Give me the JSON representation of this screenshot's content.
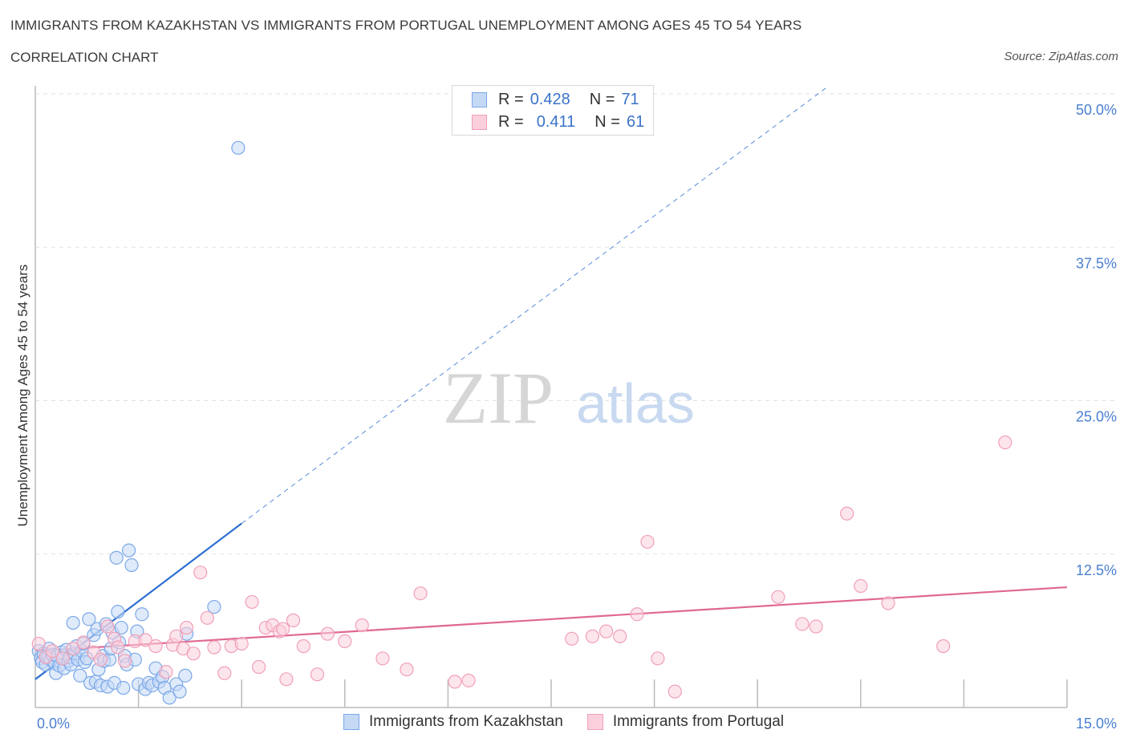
{
  "header": {
    "title": "IMMIGRANTS FROM KAZAKHSTAN VS IMMIGRANTS FROM PORTUGAL UNEMPLOYMENT AMONG AGES 45 TO 54 YEARS",
    "subtitle": "CORRELATION CHART",
    "source": "Source: ZipAtlas.com"
  },
  "legend_top": {
    "rows": [
      {
        "r_label": "R =",
        "r_value": "0.428",
        "n_label": "N =",
        "n_value": "71"
      },
      {
        "r_label": "R =",
        "r_value": "0.411",
        "n_label": "N =",
        "n_value": "61"
      }
    ]
  },
  "watermark": {
    "zip": "ZIP",
    "atlas": "atlas"
  },
  "chart_data": {
    "type": "scatter",
    "title": "IMMIGRANTS FROM KAZAKHSTAN VS IMMIGRANTS FROM PORTUGAL UNEMPLOYMENT AMONG AGES 45 TO 54 YEARS",
    "xlabel": "",
    "ylabel": "Unemployment Among Ages 45 to 54 years",
    "xlim": [
      0,
      15
    ],
    "ylim": [
      0,
      50
    ],
    "x_tick_labels": [
      "0.0%",
      "15.0%"
    ],
    "y_ticks": [
      12.5,
      25.0,
      37.5,
      50.0
    ],
    "y_tick_labels": [
      "12.5%",
      "25.0%",
      "37.5%",
      "50.0%"
    ],
    "grid": true,
    "series": [
      {
        "name": "Immigrants from Kazakhstan",
        "color": "#7aa8e8",
        "fill": "#c5d9f5",
        "line_color": "#2e6fd0",
        "trend": {
          "x0": 0.0,
          "y0": 2.3,
          "x1": 3.0,
          "y1": 15.0,
          "dash_to_x": 11.5,
          "dash_to_y": 50.5
        },
        "points": [
          [
            0.05,
            4.6
          ],
          [
            0.08,
            4.0
          ],
          [
            0.1,
            3.7
          ],
          [
            0.12,
            4.4
          ],
          [
            0.15,
            3.5
          ],
          [
            0.18,
            4.1
          ],
          [
            0.2,
            4.8
          ],
          [
            0.22,
            3.9
          ],
          [
            0.25,
            4.3
          ],
          [
            0.28,
            3.6
          ],
          [
            0.3,
            2.8
          ],
          [
            0.32,
            4.2
          ],
          [
            0.35,
            3.4
          ],
          [
            0.38,
            4.5
          ],
          [
            0.4,
            4.0
          ],
          [
            0.42,
            3.2
          ],
          [
            0.45,
            4.7
          ],
          [
            0.48,
            3.8
          ],
          [
            0.5,
            4.1
          ],
          [
            0.52,
            3.5
          ],
          [
            0.55,
            6.9
          ],
          [
            0.57,
            4.4
          ],
          [
            0.6,
            5.0
          ],
          [
            0.62,
            3.9
          ],
          [
            0.65,
            2.6
          ],
          [
            0.68,
            4.6
          ],
          [
            0.7,
            5.2
          ],
          [
            0.72,
            3.7
          ],
          [
            0.75,
            4.0
          ],
          [
            0.78,
            7.2
          ],
          [
            0.8,
            2.0
          ],
          [
            0.85,
            5.9
          ],
          [
            0.88,
            2.1
          ],
          [
            0.9,
            6.4
          ],
          [
            0.92,
            3.1
          ],
          [
            0.95,
            1.8
          ],
          [
            0.98,
            4.2
          ],
          [
            1.0,
            3.8
          ],
          [
            1.03,
            6.8
          ],
          [
            1.05,
            1.7
          ],
          [
            1.08,
            3.9
          ],
          [
            1.1,
            4.8
          ],
          [
            1.12,
            6.1
          ],
          [
            1.15,
            2.0
          ],
          [
            1.18,
            12.2
          ],
          [
            1.2,
            7.8
          ],
          [
            1.22,
            5.3
          ],
          [
            1.25,
            6.5
          ],
          [
            1.28,
            1.6
          ],
          [
            1.3,
            4.2
          ],
          [
            1.33,
            3.5
          ],
          [
            1.36,
            12.8
          ],
          [
            1.4,
            11.6
          ],
          [
            1.45,
            3.9
          ],
          [
            1.48,
            6.2
          ],
          [
            1.5,
            1.9
          ],
          [
            1.55,
            7.6
          ],
          [
            1.6,
            1.5
          ],
          [
            1.65,
            2.0
          ],
          [
            1.7,
            1.8
          ],
          [
            1.75,
            3.2
          ],
          [
            1.8,
            2.1
          ],
          [
            1.85,
            2.5
          ],
          [
            1.88,
            1.6
          ],
          [
            1.95,
            0.8
          ],
          [
            2.05,
            1.9
          ],
          [
            2.1,
            1.3
          ],
          [
            2.18,
            2.6
          ],
          [
            2.2,
            6.0
          ],
          [
            2.6,
            8.2
          ],
          [
            2.95,
            45.6
          ]
        ]
      },
      {
        "name": "Immigrants from Portugal",
        "color": "#f0a0b8",
        "fill": "#fbd0dc",
        "line_color": "#e06892",
        "trend": {
          "x0": 0.0,
          "y0": 4.6,
          "x1": 15.0,
          "y1": 9.8
        },
        "points": [
          [
            0.05,
            5.2
          ],
          [
            0.15,
            4.1
          ],
          [
            0.25,
            4.6
          ],
          [
            0.4,
            4.0
          ],
          [
            0.55,
            4.8
          ],
          [
            0.7,
            5.3
          ],
          [
            0.85,
            4.5
          ],
          [
            0.95,
            3.9
          ],
          [
            1.05,
            6.6
          ],
          [
            1.15,
            5.6
          ],
          [
            1.2,
            4.9
          ],
          [
            1.3,
            3.8
          ],
          [
            1.45,
            5.4
          ],
          [
            1.6,
            5.5
          ],
          [
            1.75,
            5.0
          ],
          [
            1.9,
            2.9
          ],
          [
            2.0,
            5.1
          ],
          [
            2.15,
            4.8
          ],
          [
            2.2,
            6.5
          ],
          [
            2.3,
            4.4
          ],
          [
            2.4,
            11.0
          ],
          [
            2.5,
            7.3
          ],
          [
            2.6,
            4.9
          ],
          [
            2.75,
            2.8
          ],
          [
            2.85,
            5.0
          ],
          [
            3.0,
            5.2
          ],
          [
            3.15,
            8.6
          ],
          [
            3.25,
            3.3
          ],
          [
            3.35,
            6.5
          ],
          [
            3.45,
            6.7
          ],
          [
            3.55,
            6.2
          ],
          [
            3.65,
            2.3
          ],
          [
            3.75,
            7.1
          ],
          [
            3.9,
            5.0
          ],
          [
            4.1,
            2.7
          ],
          [
            4.25,
            6.0
          ],
          [
            4.5,
            5.4
          ],
          [
            4.75,
            6.7
          ],
          [
            5.05,
            4.0
          ],
          [
            5.4,
            3.1
          ],
          [
            5.6,
            9.3
          ],
          [
            6.1,
            2.1
          ],
          [
            6.3,
            2.2
          ],
          [
            7.8,
            5.6
          ],
          [
            8.1,
            5.8
          ],
          [
            8.3,
            6.2
          ],
          [
            8.5,
            5.8
          ],
          [
            8.75,
            7.6
          ],
          [
            9.05,
            4.0
          ],
          [
            9.3,
            1.3
          ],
          [
            10.8,
            9.0
          ],
          [
            11.15,
            6.8
          ],
          [
            11.35,
            6.6
          ],
          [
            11.8,
            15.8
          ],
          [
            12.0,
            9.9
          ],
          [
            12.4,
            8.5
          ],
          [
            13.2,
            5.0
          ],
          [
            14.1,
            21.6
          ],
          [
            2.05,
            5.8
          ],
          [
            3.6,
            6.4
          ],
          [
            8.9,
            13.5
          ]
        ]
      }
    ]
  },
  "legend_bottom": {
    "items": [
      {
        "label": "Immigrants from Kazakhstan"
      },
      {
        "label": "Immigrants from Portugal"
      }
    ]
  }
}
